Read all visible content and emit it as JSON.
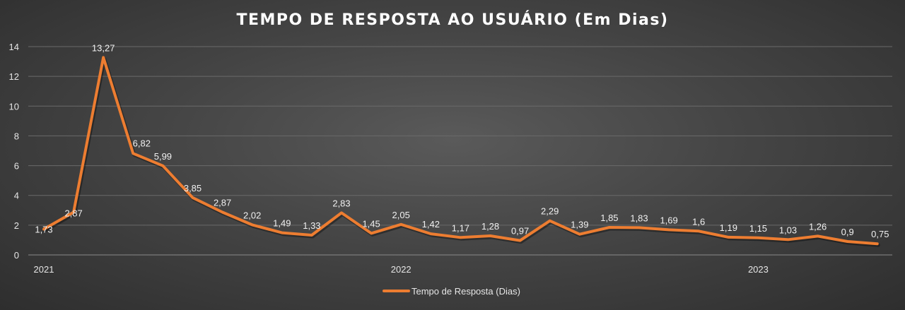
{
  "chart_data": {
    "type": "line",
    "title": "TEMPO DE RESPOSTA AO USUÁRIO (Em Dias)",
    "xlabel": "",
    "ylabel": "",
    "ylim": [
      0,
      14
    ],
    "yticks": [
      "0",
      "2",
      "4",
      "6",
      "8",
      "10",
      "12",
      "14"
    ],
    "x_tick_labels": [
      {
        "label": "2021",
        "index": 0
      },
      {
        "label": "2022",
        "index": 12
      },
      {
        "label": "2023",
        "index": 24
      }
    ],
    "grid": true,
    "legend_position": "bottom",
    "series": [
      {
        "name": "Tempo de Resposta (Dias)",
        "color": "#ED7D31",
        "values": [
          1.73,
          2.87,
          13.27,
          6.82,
          5.99,
          3.85,
          2.87,
          2.02,
          1.49,
          1.33,
          2.83,
          1.45,
          2.05,
          1.42,
          1.17,
          1.28,
          0.97,
          2.29,
          1.39,
          1.85,
          1.83,
          1.69,
          1.6,
          1.19,
          1.15,
          1.03,
          1.26,
          0.9,
          0.75
        ],
        "labels": [
          "1,73",
          "2,87",
          "13,27",
          "6,82",
          "5,99",
          "3,85",
          "2,87",
          "2,02",
          "1,49",
          "1,33",
          "2,83",
          "1,45",
          "2,05",
          "1,42",
          "1,17",
          "1,28",
          "0,97",
          "2,29",
          "1,39",
          "1,85",
          "1,83",
          "1,69",
          "1,6",
          "1,19",
          "1,15",
          "1,03",
          "1,26",
          "0,9",
          "0,75"
        ]
      }
    ]
  }
}
